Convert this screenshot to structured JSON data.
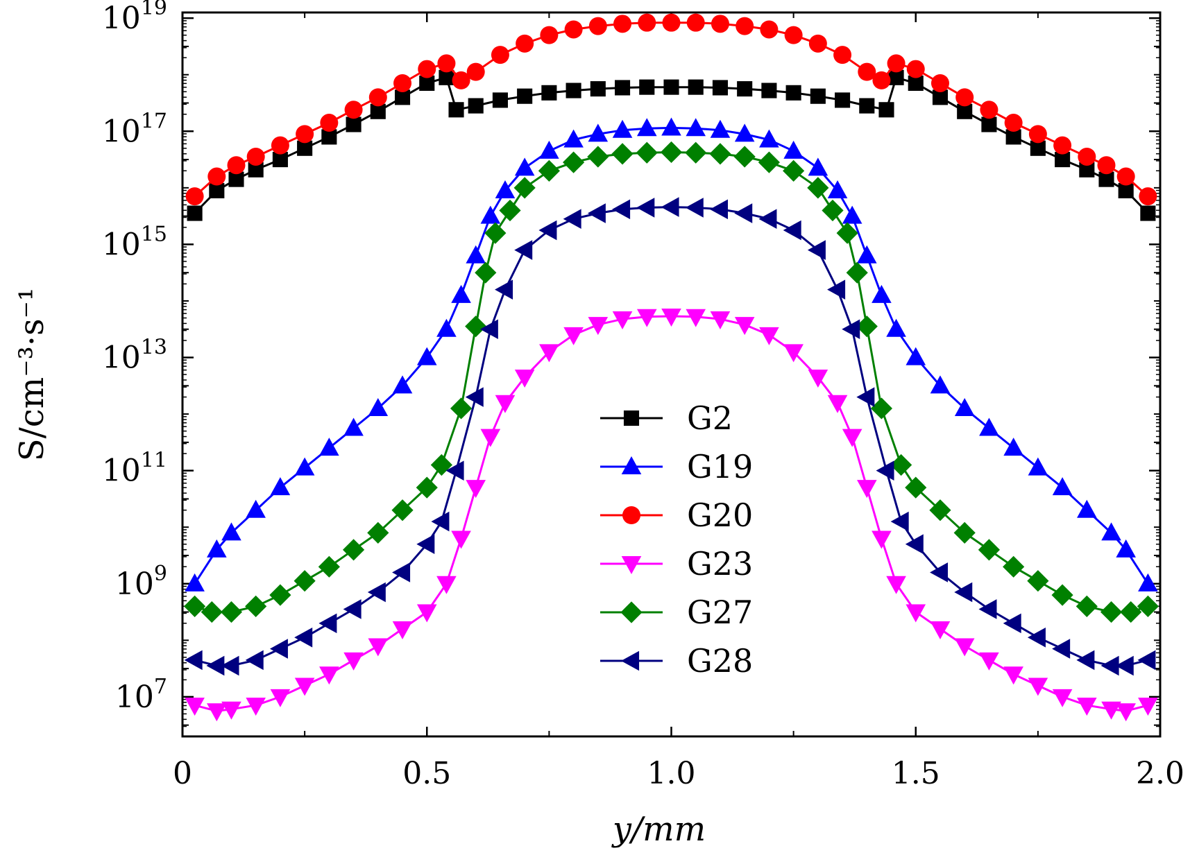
{
  "chart_data": {
    "type": "line",
    "title": "",
    "xlabel": "y/mm",
    "ylabel": "S/cm⁻³·s⁻¹",
    "xlim": [
      0,
      2.0
    ],
    "ylim_log10": [
      6.3,
      19.1
    ],
    "y_scale": "log",
    "x_ticks": [
      0,
      0.5,
      1.0,
      1.5,
      2.0
    ],
    "x_tick_labels": [
      "0",
      "0.5",
      "1.0",
      "1.5",
      "2.0"
    ],
    "y_ticks_log10": [
      7,
      9,
      11,
      13,
      15,
      17,
      19
    ],
    "y_tick_labels": [
      {
        "base": "10",
        "exp": "7"
      },
      {
        "base": "10",
        "exp": "9"
      },
      {
        "base": "10",
        "exp": "11"
      },
      {
        "base": "10",
        "exp": "13"
      },
      {
        "base": "10",
        "exp": "15"
      },
      {
        "base": "10",
        "exp": "17"
      },
      {
        "base": "10",
        "exp": "19"
      }
    ],
    "legend_position": "center",
    "series": [
      {
        "name": "G2",
        "color": "#000000",
        "marker": "square",
        "label": "G2",
        "points": [
          [
            0.025,
            15.55
          ],
          [
            0.07,
            15.95
          ],
          [
            0.11,
            16.15
          ],
          [
            0.15,
            16.32
          ],
          [
            0.2,
            16.5
          ],
          [
            0.25,
            16.7
          ],
          [
            0.3,
            16.9
          ],
          [
            0.35,
            17.12
          ],
          [
            0.4,
            17.35
          ],
          [
            0.45,
            17.6
          ],
          [
            0.5,
            17.85
          ],
          [
            0.54,
            17.95
          ],
          [
            0.56,
            17.38
          ],
          [
            0.6,
            17.45
          ],
          [
            0.65,
            17.55
          ],
          [
            0.7,
            17.62
          ],
          [
            0.75,
            17.68
          ],
          [
            0.8,
            17.72
          ],
          [
            0.85,
            17.75
          ],
          [
            0.9,
            17.77
          ],
          [
            0.95,
            17.78
          ],
          [
            1.0,
            17.78
          ],
          [
            1.05,
            17.78
          ],
          [
            1.1,
            17.77
          ],
          [
            1.15,
            17.75
          ],
          [
            1.2,
            17.72
          ],
          [
            1.25,
            17.68
          ],
          [
            1.3,
            17.62
          ],
          [
            1.35,
            17.55
          ],
          [
            1.4,
            17.45
          ],
          [
            1.44,
            17.38
          ],
          [
            1.46,
            17.95
          ],
          [
            1.5,
            17.85
          ],
          [
            1.55,
            17.6
          ],
          [
            1.6,
            17.35
          ],
          [
            1.65,
            17.12
          ],
          [
            1.7,
            16.9
          ],
          [
            1.75,
            16.7
          ],
          [
            1.8,
            16.5
          ],
          [
            1.85,
            16.32
          ],
          [
            1.89,
            16.15
          ],
          [
            1.93,
            15.95
          ],
          [
            1.975,
            15.55
          ]
        ]
      },
      {
        "name": "G19",
        "color": "#0000ff",
        "marker": "triangle-up",
        "label": "G19",
        "points": [
          [
            0.025,
            9.0
          ],
          [
            0.07,
            9.6
          ],
          [
            0.1,
            9.9
          ],
          [
            0.15,
            10.3
          ],
          [
            0.2,
            10.7
          ],
          [
            0.25,
            11.05
          ],
          [
            0.3,
            11.4
          ],
          [
            0.35,
            11.75
          ],
          [
            0.4,
            12.1
          ],
          [
            0.45,
            12.5
          ],
          [
            0.5,
            13.0
          ],
          [
            0.54,
            13.5
          ],
          [
            0.57,
            14.1
          ],
          [
            0.6,
            14.8
          ],
          [
            0.63,
            15.5
          ],
          [
            0.66,
            15.95
          ],
          [
            0.7,
            16.35
          ],
          [
            0.75,
            16.65
          ],
          [
            0.8,
            16.85
          ],
          [
            0.85,
            16.95
          ],
          [
            0.9,
            17.02
          ],
          [
            0.95,
            17.05
          ],
          [
            1.0,
            17.06
          ],
          [
            1.05,
            17.05
          ],
          [
            1.1,
            17.02
          ],
          [
            1.15,
            16.95
          ],
          [
            1.2,
            16.85
          ],
          [
            1.25,
            16.65
          ],
          [
            1.3,
            16.35
          ],
          [
            1.34,
            15.95
          ],
          [
            1.37,
            15.5
          ],
          [
            1.4,
            14.8
          ],
          [
            1.43,
            14.1
          ],
          [
            1.46,
            13.5
          ],
          [
            1.5,
            13.0
          ],
          [
            1.55,
            12.5
          ],
          [
            1.6,
            12.1
          ],
          [
            1.65,
            11.75
          ],
          [
            1.7,
            11.4
          ],
          [
            1.75,
            11.05
          ],
          [
            1.8,
            10.7
          ],
          [
            1.85,
            10.3
          ],
          [
            1.9,
            9.9
          ],
          [
            1.93,
            9.6
          ],
          [
            1.975,
            9.0
          ]
        ]
      },
      {
        "name": "G20",
        "color": "#ff0000",
        "marker": "circle",
        "label": "G20",
        "points": [
          [
            0.025,
            15.85
          ],
          [
            0.07,
            16.2
          ],
          [
            0.11,
            16.4
          ],
          [
            0.15,
            16.55
          ],
          [
            0.2,
            16.75
          ],
          [
            0.25,
            16.95
          ],
          [
            0.3,
            17.15
          ],
          [
            0.35,
            17.38
          ],
          [
            0.4,
            17.6
          ],
          [
            0.45,
            17.85
          ],
          [
            0.5,
            18.1
          ],
          [
            0.54,
            18.2
          ],
          [
            0.57,
            17.9
          ],
          [
            0.6,
            18.05
          ],
          [
            0.65,
            18.35
          ],
          [
            0.7,
            18.55
          ],
          [
            0.75,
            18.7
          ],
          [
            0.8,
            18.8
          ],
          [
            0.85,
            18.86
          ],
          [
            0.9,
            18.9
          ],
          [
            0.95,
            18.92
          ],
          [
            1.0,
            18.92
          ],
          [
            1.05,
            18.92
          ],
          [
            1.1,
            18.9
          ],
          [
            1.15,
            18.86
          ],
          [
            1.2,
            18.8
          ],
          [
            1.25,
            18.7
          ],
          [
            1.3,
            18.55
          ],
          [
            1.35,
            18.35
          ],
          [
            1.4,
            18.05
          ],
          [
            1.43,
            17.9
          ],
          [
            1.46,
            18.2
          ],
          [
            1.5,
            18.1
          ],
          [
            1.55,
            17.85
          ],
          [
            1.6,
            17.6
          ],
          [
            1.65,
            17.38
          ],
          [
            1.7,
            17.15
          ],
          [
            1.75,
            16.95
          ],
          [
            1.8,
            16.75
          ],
          [
            1.85,
            16.55
          ],
          [
            1.89,
            16.4
          ],
          [
            1.93,
            16.2
          ],
          [
            1.975,
            15.85
          ]
        ]
      },
      {
        "name": "G23",
        "color": "#ff00ff",
        "marker": "triangle-down",
        "label": "G23",
        "points": [
          [
            0.025,
            6.85
          ],
          [
            0.07,
            6.75
          ],
          [
            0.1,
            6.78
          ],
          [
            0.15,
            6.85
          ],
          [
            0.2,
            7.0
          ],
          [
            0.25,
            7.2
          ],
          [
            0.3,
            7.4
          ],
          [
            0.35,
            7.65
          ],
          [
            0.4,
            7.9
          ],
          [
            0.45,
            8.2
          ],
          [
            0.5,
            8.5
          ],
          [
            0.54,
            9.0
          ],
          [
            0.57,
            9.8
          ],
          [
            0.6,
            10.7
          ],
          [
            0.63,
            11.6
          ],
          [
            0.66,
            12.2
          ],
          [
            0.7,
            12.65
          ],
          [
            0.75,
            13.1
          ],
          [
            0.8,
            13.4
          ],
          [
            0.85,
            13.58
          ],
          [
            0.9,
            13.68
          ],
          [
            0.95,
            13.72
          ],
          [
            1.0,
            13.73
          ],
          [
            1.05,
            13.72
          ],
          [
            1.1,
            13.68
          ],
          [
            1.15,
            13.58
          ],
          [
            1.2,
            13.4
          ],
          [
            1.25,
            13.1
          ],
          [
            1.3,
            12.65
          ],
          [
            1.34,
            12.2
          ],
          [
            1.37,
            11.6
          ],
          [
            1.4,
            10.7
          ],
          [
            1.43,
            9.8
          ],
          [
            1.46,
            9.0
          ],
          [
            1.5,
            8.5
          ],
          [
            1.55,
            8.2
          ],
          [
            1.6,
            7.9
          ],
          [
            1.65,
            7.65
          ],
          [
            1.7,
            7.4
          ],
          [
            1.75,
            7.2
          ],
          [
            1.8,
            7.0
          ],
          [
            1.85,
            6.85
          ],
          [
            1.9,
            6.78
          ],
          [
            1.93,
            6.75
          ],
          [
            1.975,
            6.85
          ]
        ]
      },
      {
        "name": "G27",
        "color": "#008000",
        "marker": "diamond",
        "label": "G27",
        "points": [
          [
            0.025,
            8.6
          ],
          [
            0.06,
            8.5
          ],
          [
            0.1,
            8.5
          ],
          [
            0.15,
            8.6
          ],
          [
            0.2,
            8.8
          ],
          [
            0.25,
            9.05
          ],
          [
            0.3,
            9.3
          ],
          [
            0.35,
            9.6
          ],
          [
            0.4,
            9.9
          ],
          [
            0.45,
            10.3
          ],
          [
            0.5,
            10.7
          ],
          [
            0.53,
            11.1
          ],
          [
            0.57,
            12.1
          ],
          [
            0.6,
            13.55
          ],
          [
            0.62,
            14.5
          ],
          [
            0.64,
            15.2
          ],
          [
            0.67,
            15.6
          ],
          [
            0.7,
            16.0
          ],
          [
            0.75,
            16.3
          ],
          [
            0.8,
            16.45
          ],
          [
            0.85,
            16.55
          ],
          [
            0.9,
            16.6
          ],
          [
            0.95,
            16.62
          ],
          [
            1.0,
            16.63
          ],
          [
            1.05,
            16.62
          ],
          [
            1.1,
            16.6
          ],
          [
            1.15,
            16.55
          ],
          [
            1.2,
            16.45
          ],
          [
            1.25,
            16.3
          ],
          [
            1.3,
            16.0
          ],
          [
            1.33,
            15.6
          ],
          [
            1.36,
            15.2
          ],
          [
            1.38,
            14.5
          ],
          [
            1.4,
            13.55
          ],
          [
            1.43,
            12.1
          ],
          [
            1.47,
            11.1
          ],
          [
            1.5,
            10.7
          ],
          [
            1.55,
            10.3
          ],
          [
            1.6,
            9.9
          ],
          [
            1.65,
            9.6
          ],
          [
            1.7,
            9.3
          ],
          [
            1.75,
            9.05
          ],
          [
            1.8,
            8.8
          ],
          [
            1.85,
            8.6
          ],
          [
            1.9,
            8.5
          ],
          [
            1.94,
            8.5
          ],
          [
            1.975,
            8.6
          ]
        ]
      },
      {
        "name": "G28",
        "color": "#000080",
        "marker": "triangle-left",
        "label": "G28",
        "points": [
          [
            0.025,
            7.65
          ],
          [
            0.07,
            7.55
          ],
          [
            0.1,
            7.55
          ],
          [
            0.15,
            7.65
          ],
          [
            0.2,
            7.85
          ],
          [
            0.25,
            8.05
          ],
          [
            0.3,
            8.3
          ],
          [
            0.35,
            8.55
          ],
          [
            0.4,
            8.85
          ],
          [
            0.45,
            9.2
          ],
          [
            0.5,
            9.7
          ],
          [
            0.53,
            10.1
          ],
          [
            0.56,
            11.0
          ],
          [
            0.6,
            12.3
          ],
          [
            0.63,
            13.5
          ],
          [
            0.66,
            14.2
          ],
          [
            0.7,
            14.9
          ],
          [
            0.75,
            15.25
          ],
          [
            0.8,
            15.45
          ],
          [
            0.85,
            15.55
          ],
          [
            0.9,
            15.62
          ],
          [
            0.95,
            15.65
          ],
          [
            1.0,
            15.66
          ],
          [
            1.05,
            15.65
          ],
          [
            1.1,
            15.62
          ],
          [
            1.15,
            15.55
          ],
          [
            1.2,
            15.45
          ],
          [
            1.25,
            15.25
          ],
          [
            1.3,
            14.9
          ],
          [
            1.34,
            14.2
          ],
          [
            1.37,
            13.5
          ],
          [
            1.4,
            12.3
          ],
          [
            1.44,
            11.0
          ],
          [
            1.47,
            10.1
          ],
          [
            1.5,
            9.7
          ],
          [
            1.55,
            9.2
          ],
          [
            1.6,
            8.85
          ],
          [
            1.65,
            8.55
          ],
          [
            1.7,
            8.3
          ],
          [
            1.75,
            8.05
          ],
          [
            1.8,
            7.85
          ],
          [
            1.85,
            7.65
          ],
          [
            1.9,
            7.55
          ],
          [
            1.93,
            7.55
          ],
          [
            1.975,
            7.65
          ]
        ]
      }
    ]
  }
}
